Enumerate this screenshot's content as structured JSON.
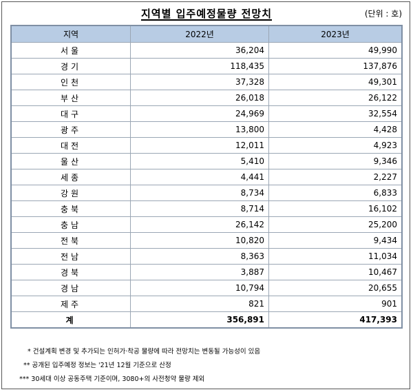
{
  "header": {
    "title": "지역별 입주예정물량 전망치",
    "unit": "(단위 : 호)"
  },
  "table": {
    "columns": [
      "지역",
      "2022년",
      "2023년"
    ],
    "rows": [
      [
        "서울",
        "36,204",
        "49,990"
      ],
      [
        "경기",
        "118,435",
        "137,876"
      ],
      [
        "인천",
        "37,328",
        "49,301"
      ],
      [
        "부산",
        "26,018",
        "26,122"
      ],
      [
        "대구",
        "24,969",
        "32,554"
      ],
      [
        "광주",
        "13,800",
        "4,428"
      ],
      [
        "대전",
        "12,011",
        "4,923"
      ],
      [
        "울산",
        "5,410",
        "9,346"
      ],
      [
        "세종",
        "4,441",
        "2,227"
      ],
      [
        "강원",
        "8,734",
        "6,833"
      ],
      [
        "충북",
        "8,714",
        "16,102"
      ],
      [
        "충남",
        "26,142",
        "25,200"
      ],
      [
        "전북",
        "10,820",
        "9,434"
      ],
      [
        "전남",
        "8,363",
        "11,034"
      ],
      [
        "경북",
        "3,887",
        "10,467"
      ],
      [
        "경남",
        "10,794",
        "20,655"
      ],
      [
        "제주",
        "821",
        "901"
      ]
    ],
    "total": [
      "계",
      "356,891",
      "417,393"
    ]
  },
  "notes": [
    "* 건설계획 변경 및 추가되는 인허가·착공 물량에 따라 전망치는 변동될 가능성이 있음",
    "** 공개된 입주예정 정보는 '21년 12월 기준으로 산정",
    "*** 30세대 이상 공동주택 기준이며, 3080+의 사전청약 물량 제외"
  ]
}
